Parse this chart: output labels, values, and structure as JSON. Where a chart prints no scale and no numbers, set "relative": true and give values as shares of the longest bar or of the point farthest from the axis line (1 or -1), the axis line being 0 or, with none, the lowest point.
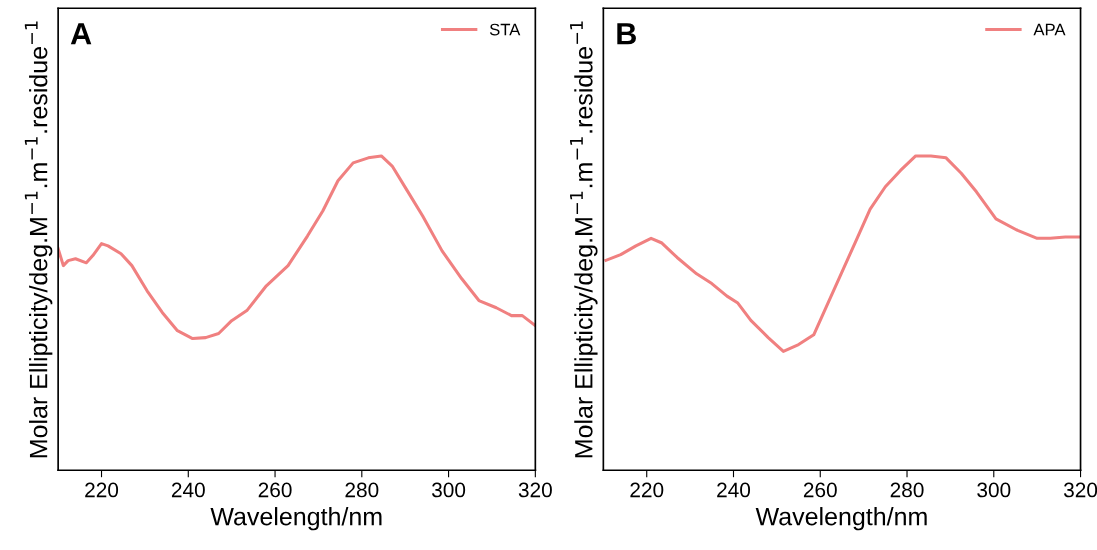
{
  "chart_data": [
    {
      "type": "line",
      "relative": true,
      "xlabel": "Wavelength/nm",
      "ylabel": "Molar Ellipticity/deg.M$^{−1}$.m$^{−1}$.residue$^{−1}$",
      "annotations": [
        "A"
      ],
      "xlim": [
        210,
        320
      ],
      "xticks": [
        220,
        240,
        260,
        280,
        300,
        320
      ],
      "tick_labels": "x",
      "legend": "top right",
      "series": [
        {
          "name": "STA",
          "color": "#f08080",
          "x": [
            210,
            211.2,
            212.3,
            214,
            216.5,
            218,
            220,
            221.5,
            224.5,
            227,
            230.5,
            234,
            237.5,
            241,
            244,
            247,
            250,
            253.5,
            258,
            263,
            267.5,
            271,
            274.5,
            278,
            281.5,
            284.5,
            287,
            290.5,
            294,
            298.5,
            303,
            307,
            311,
            314.5,
            317,
            320
          ],
          "values": [
            0.705,
            0.651,
            0.667,
            0.673,
            0.66,
            0.683,
            0.721,
            0.714,
            0.689,
            0.651,
            0.571,
            0.502,
            0.444,
            0.419,
            0.422,
            0.435,
            0.476,
            0.508,
            0.587,
            0.651,
            0.746,
            0.825,
            0.921,
            0.978,
            0.994,
            1.0,
            0.968,
            0.889,
            0.81,
            0.698,
            0.61,
            0.54,
            0.517,
            0.492,
            0.492,
            0.46
          ]
        }
      ]
    },
    {
      "type": "line",
      "relative": true,
      "xlabel": "Wavelength/nm",
      "ylabel": "Molar Ellipticity/deg.M$^{−1}$.m$^{−1}$.residue$^{−1}$",
      "annotations": [
        "B"
      ],
      "xlim": [
        210,
        320
      ],
      "xticks": [
        220,
        240,
        260,
        280,
        300,
        320
      ],
      "tick_labels": "x",
      "legend": "top right",
      "series": [
        {
          "name": "APA",
          "color": "#f08080",
          "x": [
            210.6,
            214,
            217.5,
            221,
            223.5,
            227,
            231.5,
            235,
            238.5,
            241,
            244,
            248,
            251.5,
            255,
            258.5,
            261,
            264.5,
            268,
            271.5,
            275,
            278.5,
            282,
            285.5,
            289,
            292.5,
            296,
            300.5,
            305.5,
            310,
            313,
            316.5,
            320
          ],
          "values": [
            0.668,
            0.686,
            0.714,
            0.738,
            0.723,
            0.677,
            0.625,
            0.594,
            0.554,
            0.532,
            0.477,
            0.422,
            0.378,
            0.4,
            0.431,
            0.508,
            0.615,
            0.723,
            0.831,
            0.902,
            0.954,
            1.0,
            1.0,
            0.994,
            0.945,
            0.886,
            0.8,
            0.763,
            0.738,
            0.738,
            0.742,
            0.742
          ]
        }
      ]
    }
  ]
}
